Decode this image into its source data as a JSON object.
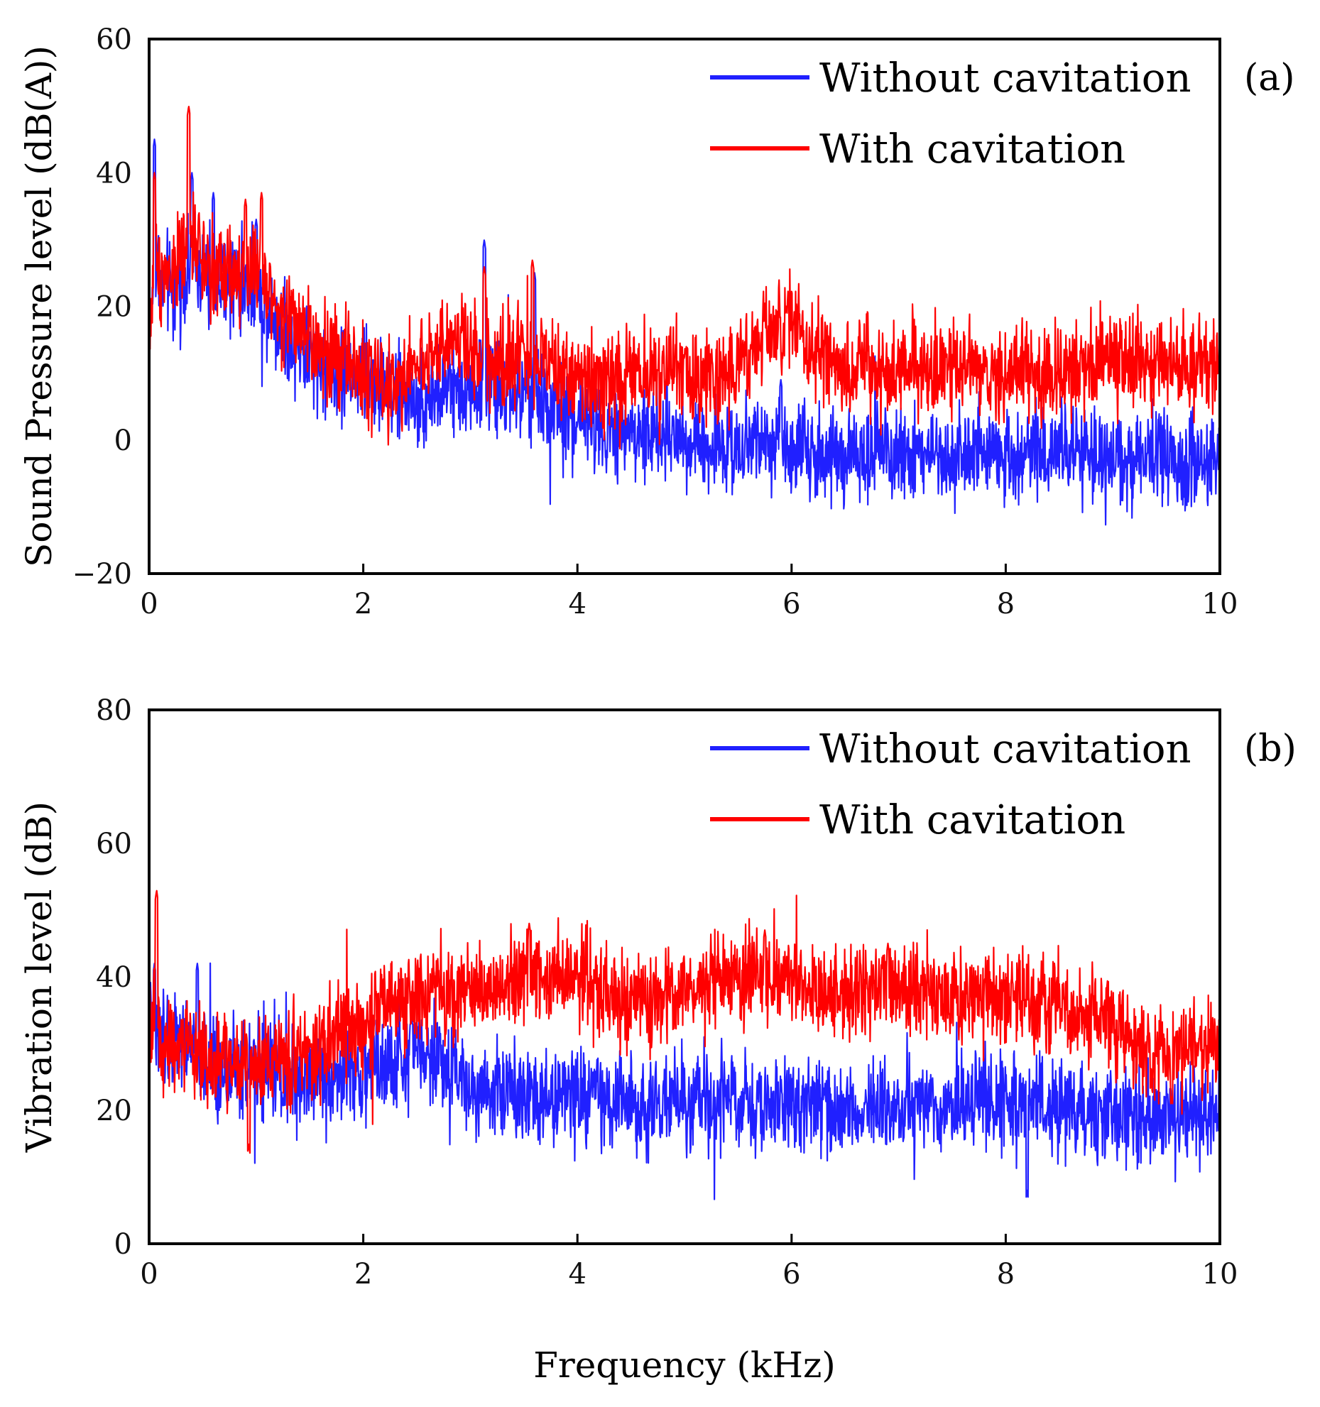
{
  "xlabel": "Frequency (kHz)",
  "colors": {
    "series_without": "#2020ff",
    "series_with": "#ff0000"
  },
  "chart_data": [
    {
      "type": "line",
      "panel_label": "(a)",
      "ylabel": "Sound Pressure level (dB(A))",
      "xlim": [
        0,
        10
      ],
      "ylim": [
        -20,
        60
      ],
      "x_ticks": [
        0,
        2,
        4,
        6,
        8,
        10
      ],
      "x_tick_labels": [
        "0",
        "2",
        "4",
        "6",
        "8",
        "10"
      ],
      "y_ticks": [
        -20,
        0,
        20,
        40,
        60
      ],
      "y_tick_labels": [
        "−20",
        "0",
        "20",
        "40",
        "60"
      ],
      "legend": [
        "Without cavitation",
        "With cavitation"
      ],
      "legend_position": "top-right",
      "series": [
        {
          "name": "Without cavitation",
          "color": "#2020ff",
          "envelope_x": [
            0,
            0.05,
            0.2,
            0.4,
            0.6,
            0.8,
            1.0,
            1.2,
            1.5,
            1.8,
            2.0,
            2.5,
            3.0,
            3.5,
            3.8,
            4.0,
            4.5,
            5.0,
            5.5,
            6.0,
            6.5,
            7.0,
            7.5,
            8.0,
            8.5,
            9.0,
            9.5,
            10.0
          ],
          "envelope_y": [
            15,
            25,
            22,
            26,
            22,
            24,
            22,
            18,
            12,
            10,
            9,
            6,
            8,
            7,
            4,
            3,
            1,
            0,
            -1,
            -1,
            -2,
            -2,
            -2,
            -2,
            -2,
            -3,
            -3,
            -3
          ],
          "peaks": [
            [
              0.05,
              45
            ],
            [
              0.4,
              40
            ],
            [
              0.6,
              37
            ],
            [
              1.0,
              33
            ],
            [
              3.13,
              30
            ],
            [
              3.6,
              25
            ],
            [
              5.9,
              9
            ]
          ]
        },
        {
          "name": "With cavitation",
          "color": "#ff0000",
          "envelope_x": [
            0,
            0.05,
            0.2,
            0.4,
            0.6,
            0.8,
            1.0,
            1.2,
            1.5,
            1.8,
            2.0,
            2.3,
            2.6,
            2.9,
            3.2,
            3.5,
            3.8,
            4.0,
            4.5,
            5.0,
            5.3,
            5.6,
            5.8,
            6.0,
            6.2,
            6.5,
            7.0,
            7.5,
            8.0,
            8.5,
            9.0,
            9.5,
            10.0
          ],
          "envelope_y": [
            15,
            26,
            25,
            29,
            25,
            26,
            25,
            20,
            14,
            12,
            10,
            8,
            13,
            14,
            12,
            13,
            10,
            10,
            9,
            10,
            9,
            13,
            16,
            17,
            14,
            11,
            11,
            11,
            10,
            10,
            12,
            11,
            11
          ],
          "peaks": [
            [
              0.05,
              40
            ],
            [
              0.37,
              50
            ],
            [
              0.9,
              36
            ],
            [
              1.05,
              37
            ],
            [
              3.13,
              26
            ],
            [
              3.58,
              27
            ],
            [
              5.95,
              20
            ]
          ]
        }
      ]
    },
    {
      "type": "line",
      "panel_label": "(b)",
      "ylabel": "Vibration level (dB)",
      "xlim": [
        0,
        10
      ],
      "ylim": [
        0,
        80
      ],
      "x_ticks": [
        0,
        2,
        4,
        6,
        8,
        10
      ],
      "x_tick_labels": [
        "0",
        "2",
        "4",
        "6",
        "8",
        "10"
      ],
      "y_ticks": [
        0,
        20,
        40,
        60,
        80
      ],
      "y_tick_labels": [
        "0",
        "20",
        "40",
        "60",
        "80"
      ],
      "legend": [
        "Without cavitation",
        "With cavitation"
      ],
      "legend_position": "top-right",
      "series": [
        {
          "name": "Without cavitation",
          "color": "#2020ff",
          "envelope_x": [
            0,
            0.1,
            0.3,
            0.5,
            0.8,
            1.0,
            1.3,
            1.6,
            2.0,
            2.3,
            2.5,
            2.8,
            3.0,
            3.5,
            4.0,
            4.5,
            5.0,
            5.5,
            6.0,
            6.5,
            7.0,
            7.5,
            8.0,
            8.5,
            9.0,
            9.5,
            10.0
          ],
          "envelope_y": [
            32,
            30,
            30,
            28,
            26,
            27,
            25,
            25,
            26,
            27,
            29,
            27,
            24,
            23,
            22,
            21,
            21,
            21,
            21,
            20,
            20,
            21,
            21,
            20,
            19,
            19,
            20
          ],
          "peaks": [
            [
              0.05,
              42
            ],
            [
              0.45,
              42
            ],
            [
              2.45,
              34
            ],
            [
              8.2,
              8
            ]
          ]
        },
        {
          "name": "With cavitation",
          "color": "#ff0000",
          "envelope_x": [
            0,
            0.1,
            0.3,
            0.5,
            0.8,
            1.0,
            1.3,
            1.6,
            2.0,
            2.3,
            2.6,
            3.0,
            3.5,
            4.0,
            4.5,
            5.0,
            5.5,
            5.8,
            6.2,
            6.5,
            7.0,
            7.5,
            8.0,
            8.5,
            9.0,
            9.3,
            9.6,
            10.0
          ],
          "envelope_y": [
            35,
            30,
            30,
            28,
            27,
            27,
            28,
            30,
            33,
            36,
            38,
            38,
            40,
            40,
            36,
            38,
            40,
            40,
            38,
            38,
            39,
            37,
            37,
            36,
            32,
            28,
            29,
            30
          ],
          "peaks": [
            [
              0.07,
              53
            ],
            [
              3.55,
              48
            ],
            [
              5.75,
              47
            ],
            [
              6.9,
              45
            ],
            [
              0.93,
              15
            ],
            [
              9.55,
              22
            ]
          ]
        }
      ]
    }
  ]
}
